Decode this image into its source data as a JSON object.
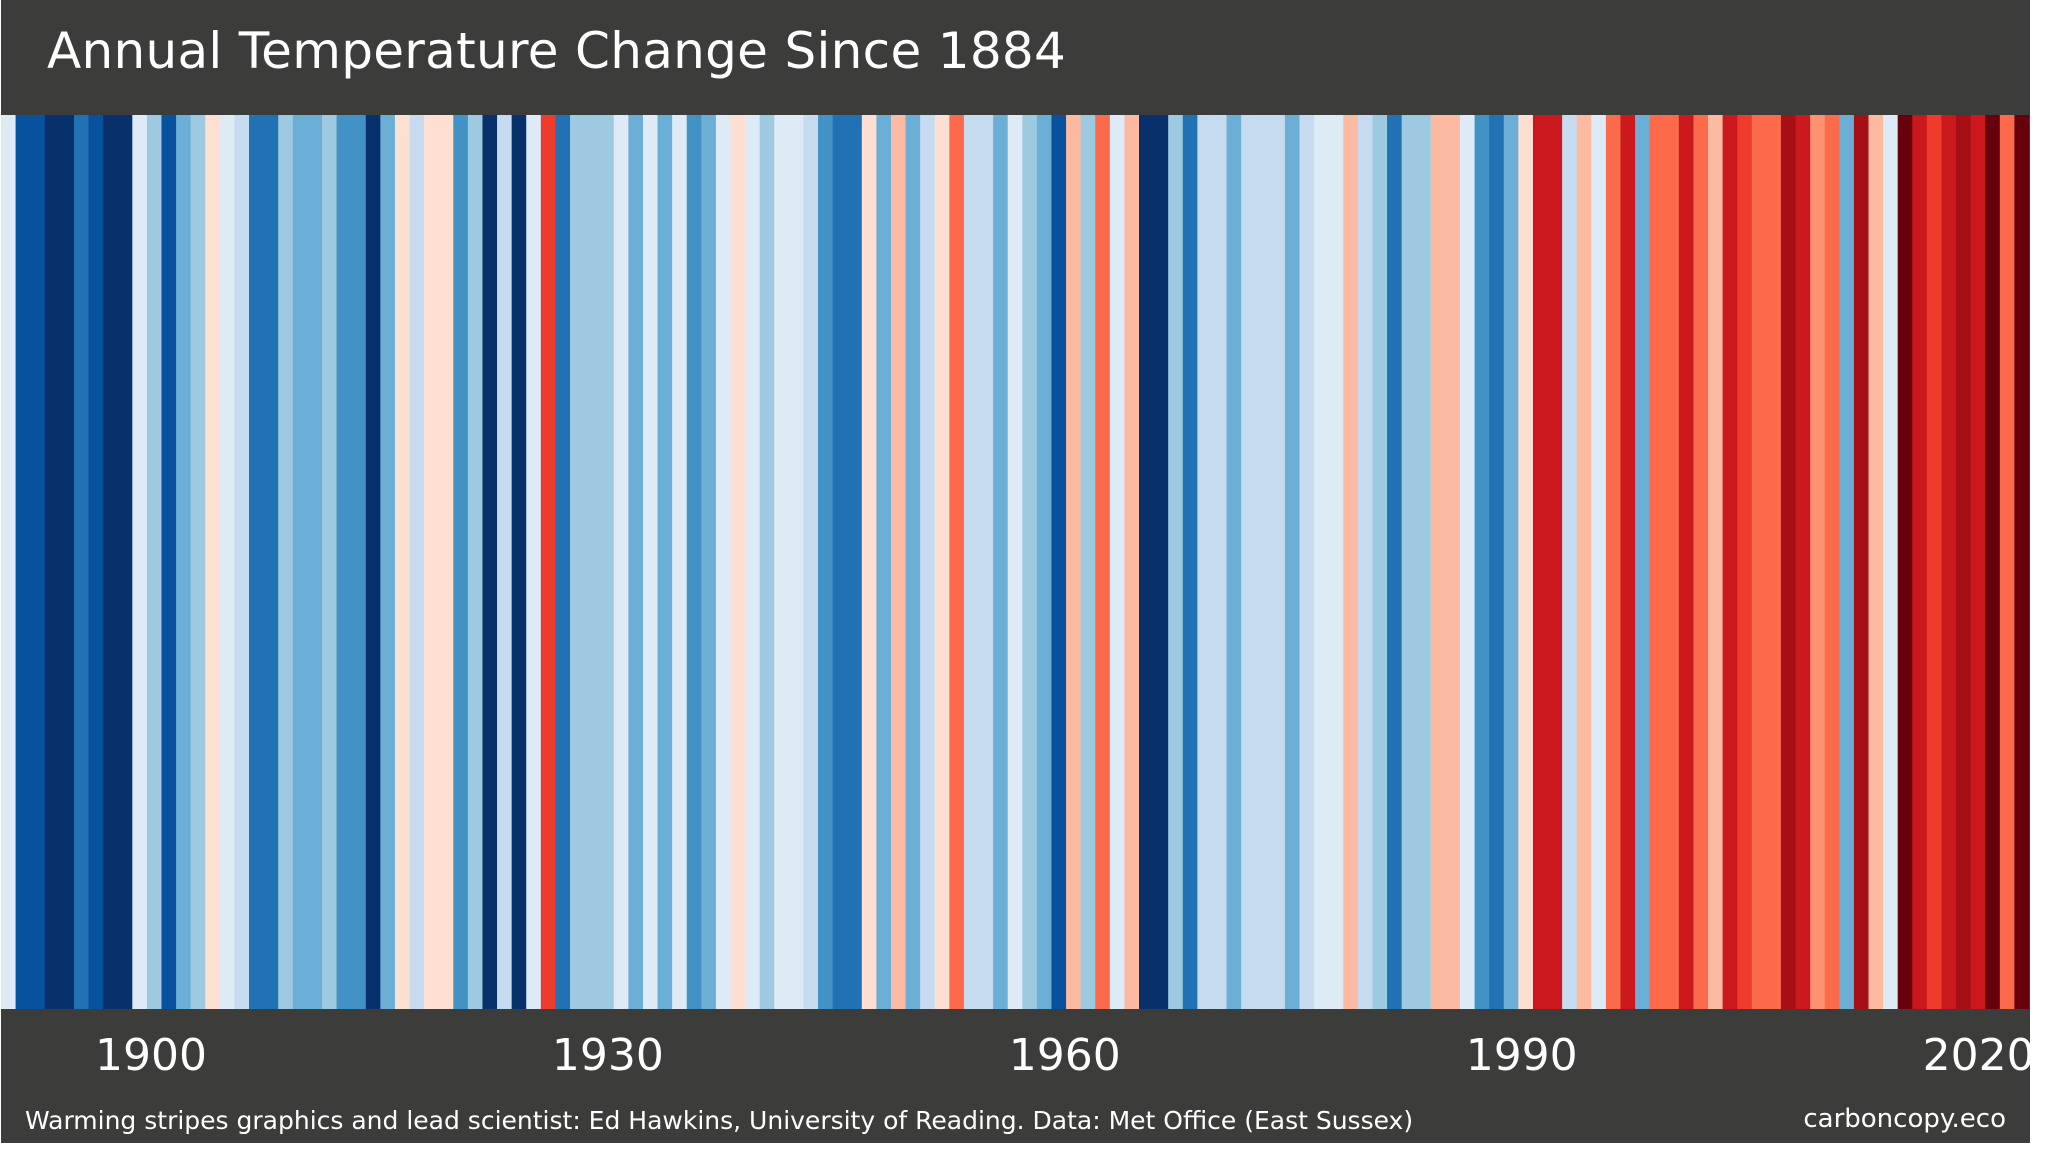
{
  "chart_data": {
    "type": "heatmap",
    "subtype": "warming-stripes",
    "title": "Annual Temperature Change Since 1884",
    "x_start_year": 1884,
    "x_end_year": 2022,
    "x_tick_labels": [
      "1900",
      "1930",
      "1960",
      "1990",
      "2020"
    ],
    "x_ticks": [
      1900,
      1930,
      1960,
      1990,
      2020
    ],
    "legend": "none",
    "grid": false,
    "stripe_colors": [
      "#deebf7",
      "#08519c",
      "#08519c",
      "#08306b",
      "#08306b",
      "#2171b5",
      "#08519c",
      "#08306b",
      "#08306b",
      "#deebf7",
      "#9ecae1",
      "#08519c",
      "#6baed6",
      "#9ecae1",
      "#fee0d2",
      "#deebf7",
      "#c6dbef",
      "#2171b5",
      "#2171b5",
      "#9ecae1",
      "#6baed6",
      "#6baed6",
      "#9ecae1",
      "#4292c6",
      "#4292c6",
      "#08306b",
      "#6baed6",
      "#fee0d2",
      "#c6dbef",
      "#fee0d2",
      "#fee0d2",
      "#4292c6",
      "#9ecae1",
      "#08306b",
      "#c6dbef",
      "#08306b",
      "#deebf7",
      "#ef3b2c",
      "#2171b5",
      "#9ecae1",
      "#9ecae1",
      "#9ecae1",
      "#deebf7",
      "#6baed6",
      "#deebf7",
      "#6baed6",
      "#deebf7",
      "#4292c6",
      "#6baed6",
      "#deebf7",
      "#fee0d2",
      "#deebf7",
      "#9ecae1",
      "#deebf7",
      "#deebf7",
      "#c6dbef",
      "#4292c6",
      "#2171b5",
      "#2171b5",
      "#fee0d2",
      "#6baed6",
      "#fcbba1",
      "#6baed6",
      "#c6dbef",
      "#fee0d2",
      "#fb6a4a",
      "#c6dbef",
      "#c6dbef",
      "#6baed6",
      "#deebf7",
      "#9ecae1",
      "#6baed6",
      "#08519c",
      "#fcbba1",
      "#9ecae1",
      "#fb6a4a",
      "#deebf7",
      "#fcbba1",
      "#08306b",
      "#08306b",
      "#9ecae1",
      "#2171b5",
      "#c6dbef",
      "#c6dbef",
      "#6baed6",
      "#c6dbef",
      "#c6dbef",
      "#c6dbef",
      "#6baed6",
      "#c6dbef",
      "#deebf7",
      "#deebf7",
      "#fcbba1",
      "#c6dbef",
      "#9ecae1",
      "#2171b5",
      "#9ecae1",
      "#9ecae1",
      "#fcbba1",
      "#fcbba1",
      "#deebf7",
      "#4292c6",
      "#2171b5",
      "#6baed6",
      "#fee0d2",
      "#cb181d",
      "#cb181d",
      "#c6dbef",
      "#fcbba1",
      "#deebf7",
      "#fb6a4a",
      "#cb181d",
      "#6baed6",
      "#fb6a4a",
      "#fb6a4a",
      "#cb181d",
      "#fb6a4a",
      "#fcbba1",
      "#cb181d",
      "#ef3b2c",
      "#fb6a4a",
      "#fb6a4a",
      "#a50f15",
      "#cb181d",
      "#fc9272",
      "#fb6a4a",
      "#6baed6",
      "#a50f15",
      "#fcbba1",
      "#deebf7",
      "#67000d",
      "#cb181d",
      "#ef3b2c",
      "#cb181d",
      "#a50f15",
      "#cb181d",
      "#67000d",
      "#fb6a4a",
      "#67000d"
    ],
    "colors": {
      "background": "#3c3c3b",
      "text": "#ffffff"
    }
  },
  "footer": {
    "credit": "Warming stripes graphics and lead scientist: Ed Hawkins, University of Reading. Data: Met Office (East Sussex)",
    "site": "carboncopy.eco"
  }
}
